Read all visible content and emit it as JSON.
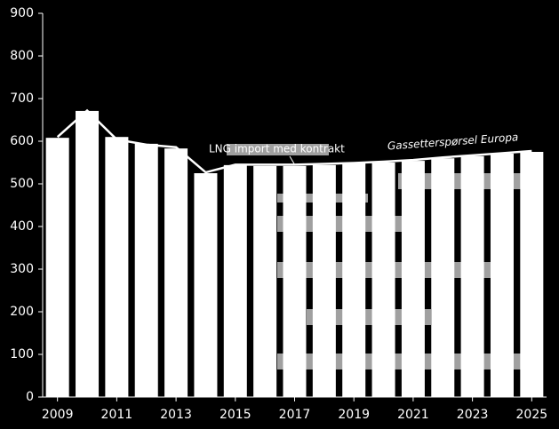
{
  "chart_data": {
    "type": "bar",
    "x": [
      2009,
      2010,
      2011,
      2012,
      2013,
      2014,
      2015,
      2016,
      2017,
      2018,
      2019,
      2020,
      2021,
      2022,
      2023,
      2024,
      2025
    ],
    "series": [
      {
        "type": "bar",
        "color": "#ffffff",
        "values": [
          608,
          671,
          610,
          594,
          583,
          525,
          544,
          542,
          542,
          544,
          548,
          550,
          554,
          560,
          565,
          571,
          575
        ]
      },
      {
        "type": "line",
        "name": "Gassetterspørsel Europa",
        "color": "#ffffff",
        "values": [
          610,
          672,
          604,
          592,
          586,
          527,
          545,
          545,
          545,
          547,
          549,
          552,
          556,
          562,
          567,
          572,
          577
        ]
      }
    ],
    "annotations": [
      "LNG import med kontrakt"
    ],
    "xlim": [
      2008.5,
      2025.5
    ],
    "xticks": [
      2009,
      2011,
      2013,
      2015,
      2017,
      2019,
      2021,
      2023,
      2025
    ],
    "ylim": [
      0,
      900
    ],
    "yticks": [
      0,
      100,
      200,
      300,
      400,
      500,
      600,
      700,
      800,
      900
    ],
    "grid": false,
    "background": "#000000"
  }
}
